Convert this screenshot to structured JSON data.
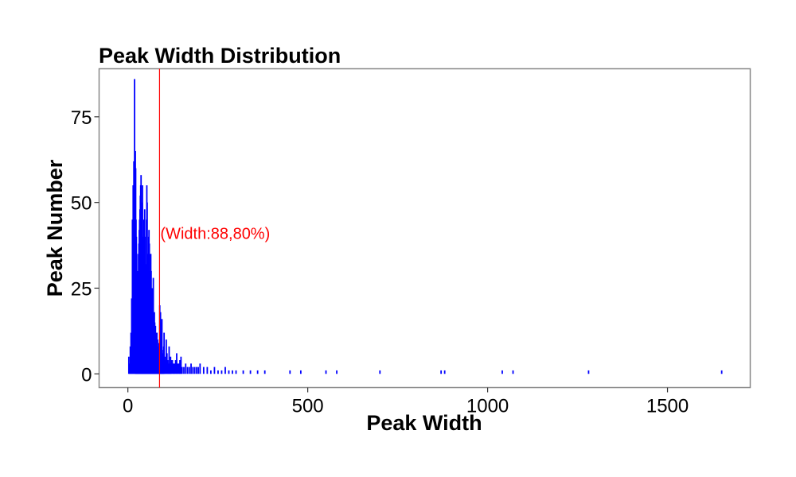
{
  "chart_data": {
    "type": "bar",
    "title": "Peak Width Distribution",
    "xlabel": "Peak Width",
    "ylabel": "Peak Number",
    "xlim": [
      -80,
      1730
    ],
    "ylim": [
      -4,
      89
    ],
    "xticks": [
      0,
      500,
      1000,
      1500
    ],
    "yticks": [
      0,
      25,
      50,
      75
    ],
    "bar_color": "#0000ff",
    "grid": false,
    "series": [
      {
        "widths": [
          2,
          4,
          6,
          8,
          10,
          12,
          14,
          16,
          18,
          20,
          21,
          22,
          23,
          24,
          25,
          26,
          27,
          28,
          29,
          30,
          31,
          32,
          33,
          34,
          35,
          36,
          37,
          38,
          39,
          40,
          41,
          42,
          43,
          44,
          45,
          46,
          47,
          48,
          49,
          50,
          51,
          52,
          53,
          54,
          55,
          56,
          57,
          58,
          59,
          60,
          61,
          62,
          63,
          64,
          65,
          66,
          67,
          68,
          69,
          70,
          71,
          72,
          73,
          74,
          75,
          76,
          77,
          78,
          79,
          80,
          81,
          82,
          83,
          84,
          85,
          86,
          87,
          88,
          89,
          90,
          91,
          92,
          93,
          94,
          95,
          96,
          97,
          98,
          99,
          100,
          102,
          104,
          106,
          108,
          110,
          112,
          114,
          116,
          118,
          120,
          123,
          126,
          129,
          132,
          135,
          138,
          141,
          144,
          147,
          150,
          155,
          160,
          165,
          170,
          175,
          180,
          185,
          190,
          195,
          200,
          210,
          220,
          230,
          240,
          250,
          260,
          270,
          280,
          290,
          300,
          320,
          340,
          360,
          380,
          450,
          480,
          550,
          580,
          700,
          870,
          880,
          1040,
          1070,
          1280,
          1650
        ],
        "counts": [
          5,
          3,
          8,
          12,
          22,
          45,
          55,
          62,
          86,
          65,
          60,
          45,
          40,
          35,
          30,
          28,
          25,
          30,
          35,
          38,
          42,
          45,
          48,
          52,
          55,
          58,
          50,
          48,
          45,
          55,
          40,
          38,
          35,
          45,
          42,
          48,
          40,
          30,
          28,
          32,
          45,
          55,
          50,
          35,
          30,
          25,
          40,
          42,
          38,
          30,
          28,
          25,
          35,
          30,
          22,
          20,
          25,
          18,
          15,
          28,
          14,
          12,
          18,
          15,
          10,
          14,
          12,
          10,
          9,
          12,
          8,
          10,
          7,
          8,
          6,
          9,
          5,
          20,
          6,
          18,
          12,
          5,
          15,
          16,
          7,
          5,
          6,
          4,
          8,
          12,
          4,
          5,
          10,
          6,
          4,
          3,
          8,
          3,
          5,
          4,
          4,
          3,
          3,
          4,
          6,
          3,
          3,
          4,
          5,
          2,
          2,
          3,
          2,
          2,
          3,
          2,
          2,
          2,
          2,
          3,
          2,
          2,
          1,
          2,
          1,
          1,
          2,
          1,
          1,
          1,
          1,
          1,
          1,
          1,
          1,
          1,
          1,
          1,
          1,
          1,
          1,
          1,
          1,
          1,
          1
        ]
      }
    ],
    "reference_line": {
      "x": 88,
      "color": "#ff0000"
    },
    "annotation": {
      "text": "(Width:88,80%)",
      "x": 88,
      "y": 41,
      "color": "#ff0000"
    }
  }
}
